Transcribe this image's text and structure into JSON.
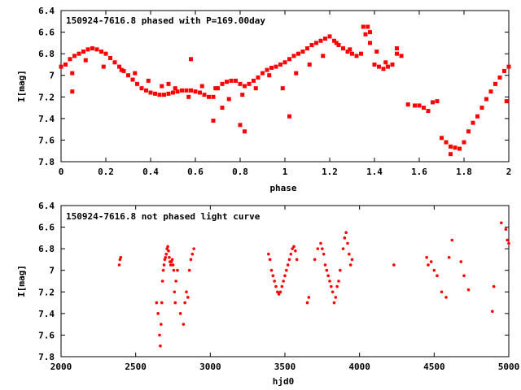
{
  "chart_data": [
    {
      "type": "scatter",
      "title": "150924-7616.8 phased with P=169.00day",
      "xlabel": "phase",
      "ylabel": "I[mag]",
      "xlim": [
        0,
        2
      ],
      "ylim": [
        7.8,
        6.4
      ],
      "y_inverted": true,
      "xticks": [
        0,
        0.2,
        0.4,
        0.6,
        0.8,
        1,
        1.2,
        1.4,
        1.6,
        1.8,
        2
      ],
      "xtick_labels": [
        "0",
        "0.2",
        "0.4",
        "0.6",
        "0.8",
        "1",
        "1.2",
        "1.4",
        "1.6",
        "1.8",
        "2"
      ],
      "yticks": [
        6.4,
        6.6,
        6.8,
        7,
        7.2,
        7.4,
        7.6,
        7.8
      ],
      "ytick_labels": [
        "6.4",
        "6.6",
        "6.8",
        "7",
        "7.2",
        "7.4",
        "7.6",
        "7.8"
      ],
      "marker": "square",
      "color": "#ff0000",
      "grid": false,
      "series": [
        {
          "x": [
            0.0,
            0.02,
            0.04,
            0.06,
            0.08,
            0.1,
            0.12,
            0.14,
            0.16,
            0.18,
            0.2,
            0.22,
            0.24,
            0.26,
            0.28,
            0.3,
            0.32,
            0.34,
            0.36,
            0.38,
            0.4,
            0.42,
            0.44,
            0.46,
            0.48,
            0.5,
            0.52,
            0.54,
            0.56,
            0.58,
            0.6,
            0.62,
            0.64,
            0.66,
            0.68,
            0.7,
            0.72,
            0.74,
            0.76,
            0.78,
            0.8,
            0.82,
            0.84,
            0.86,
            0.88,
            0.9,
            0.92,
            0.94,
            0.96,
            0.98,
            1.0,
            1.02,
            1.04,
            1.06,
            1.08,
            1.1,
            1.12,
            1.14,
            1.16,
            1.18,
            1.2,
            1.22,
            1.24,
            1.26,
            1.28,
            1.3,
            1.32,
            1.34,
            1.36,
            1.38,
            1.4,
            1.42,
            1.44,
            1.46,
            1.48,
            1.5,
            1.52,
            1.55,
            1.58,
            1.6,
            1.62,
            1.64,
            1.66,
            1.68,
            1.7,
            1.72,
            1.74,
            1.76,
            1.78,
            1.8,
            1.82,
            1.84,
            1.86,
            1.88,
            1.9,
            1.92,
            1.94,
            1.96,
            1.98,
            2.0,
            0.05,
            0.11,
            0.19,
            0.27,
            0.33,
            0.39,
            0.45,
            0.51,
            0.57,
            0.63,
            0.69,
            0.75,
            0.81,
            0.87,
            0.93,
            0.99,
            1.05,
            1.11,
            1.17,
            1.23,
            1.29,
            1.35,
            1.41,
            1.45,
            0.8,
            0.82,
            0.68,
            0.72,
            0.05,
            0.48,
            0.58,
            1.02,
            1.37,
            1.38,
            1.5,
            1.74,
            1.99
          ],
          "y": [
            6.92,
            6.9,
            6.85,
            6.82,
            6.8,
            6.78,
            6.76,
            6.75,
            6.76,
            6.78,
            6.8,
            6.84,
            6.88,
            6.92,
            6.96,
            7.0,
            7.04,
            7.08,
            7.12,
            7.14,
            7.16,
            7.17,
            7.18,
            7.18,
            7.17,
            7.16,
            7.15,
            7.14,
            7.14,
            7.14,
            7.15,
            7.16,
            7.18,
            7.2,
            7.2,
            7.12,
            7.08,
            7.06,
            7.05,
            7.05,
            7.08,
            7.1,
            7.08,
            7.05,
            7.02,
            6.98,
            6.95,
            6.93,
            6.92,
            6.9,
            6.88,
            6.85,
            6.82,
            6.8,
            6.78,
            6.75,
            6.72,
            6.7,
            6.68,
            6.66,
            6.64,
            6.68,
            6.72,
            6.75,
            6.78,
            6.8,
            6.82,
            6.8,
            6.62,
            6.7,
            6.9,
            6.92,
            6.94,
            6.92,
            6.9,
            6.75,
            6.82,
            7.27,
            7.28,
            7.28,
            7.3,
            7.33,
            7.25,
            7.24,
            7.58,
            7.62,
            7.66,
            7.67,
            7.68,
            7.62,
            7.52,
            7.44,
            7.38,
            7.3,
            7.22,
            7.15,
            7.08,
            7.02,
            6.96,
            6.92,
            6.98,
            6.86,
            6.92,
            6.95,
            6.98,
            7.05,
            7.1,
            7.12,
            7.2,
            7.1,
            7.12,
            7.22,
            7.18,
            7.12,
            7.0,
            7.12,
            6.98,
            6.9,
            6.82,
            6.7,
            6.76,
            6.55,
            6.78,
            6.88,
            7.46,
            7.52,
            7.42,
            7.3,
            7.15,
            7.08,
            6.85,
            7.38,
            6.55,
            6.6,
            6.8,
            7.73,
            7.24
          ]
        }
      ]
    },
    {
      "type": "scatter",
      "title": "150924-7616.8 not phased light curve",
      "xlabel": "hjd0",
      "ylabel": "I[mag]",
      "xlim": [
        2000,
        5000
      ],
      "ylim": [
        7.8,
        6.4
      ],
      "y_inverted": true,
      "xticks": [
        2000,
        2500,
        3000,
        3500,
        4000,
        4500,
        5000
      ],
      "xtick_labels": [
        "2000",
        "2500",
        "3000",
        "3500",
        "4000",
        "4500",
        "5000"
      ],
      "yticks": [
        6.4,
        6.6,
        6.8,
        7,
        7.2,
        7.4,
        7.6,
        7.8
      ],
      "ytick_labels": [
        "6.4",
        "6.6",
        "6.8",
        "7",
        "7.2",
        "7.4",
        "7.6",
        "7.8"
      ],
      "marker": "dot",
      "color": "#ff0000",
      "grid": false,
      "series": [
        {
          "x": [
            2390,
            2395,
            2400,
            2640,
            2650,
            2660,
            2665,
            2670,
            2675,
            2680,
            2685,
            2690,
            2695,
            2700,
            2705,
            2710,
            2715,
            2720,
            2725,
            2730,
            2735,
            2740,
            2745,
            2750,
            2755,
            2760,
            2765,
            2770,
            2780,
            2800,
            2820,
            2830,
            2840,
            2850,
            2860,
            2870,
            2880,
            2890,
            3390,
            3400,
            3410,
            3420,
            3430,
            3440,
            3450,
            3460,
            3470,
            3480,
            3490,
            3500,
            3510,
            3520,
            3530,
            3540,
            3550,
            3560,
            3570,
            3580,
            3650,
            3660,
            3700,
            3720,
            3740,
            3750,
            3760,
            3770,
            3780,
            3790,
            3800,
            3810,
            3820,
            3830,
            3840,
            3850,
            3860,
            3870,
            3890,
            3900,
            3910,
            3920,
            3930,
            3940,
            3950,
            4230,
            4450,
            4460,
            4480,
            4500,
            4520,
            4550,
            4580,
            4600,
            4620,
            4680,
            4700,
            4730,
            4890,
            4900,
            4950,
            4980,
            4990,
            5000
          ],
          "y": [
            6.95,
            6.9,
            6.88,
            7.3,
            7.4,
            7.6,
            7.7,
            7.5,
            7.3,
            7.1,
            7.0,
            6.95,
            6.9,
            6.88,
            6.85,
            6.8,
            6.78,
            6.82,
            6.88,
            6.92,
            6.95,
            6.92,
            6.9,
            6.95,
            7.0,
            7.2,
            7.3,
            7.1,
            7.0,
            7.4,
            7.5,
            7.3,
            7.2,
            7.25,
            7.0,
            6.9,
            6.85,
            6.8,
            6.85,
            6.9,
            7.0,
            7.05,
            7.1,
            7.15,
            7.2,
            7.22,
            7.2,
            7.15,
            7.1,
            7.05,
            7.0,
            6.95,
            6.9,
            6.85,
            6.8,
            6.78,
            6.82,
            6.9,
            7.3,
            7.25,
            6.9,
            6.8,
            6.75,
            6.8,
            6.85,
            6.95,
            7.0,
            7.05,
            7.1,
            7.15,
            7.2,
            7.3,
            7.25,
            7.15,
            7.1,
            7.0,
            6.8,
            6.7,
            6.65,
            6.75,
            6.85,
            6.95,
            6.9,
            6.95,
            6.88,
            6.95,
            6.92,
            7.0,
            7.05,
            7.2,
            7.25,
            6.88,
            6.72,
            6.92,
            7.05,
            7.18,
            7.38,
            7.15,
            6.56,
            6.62,
            6.72,
            6.75
          ]
        }
      ]
    }
  ]
}
